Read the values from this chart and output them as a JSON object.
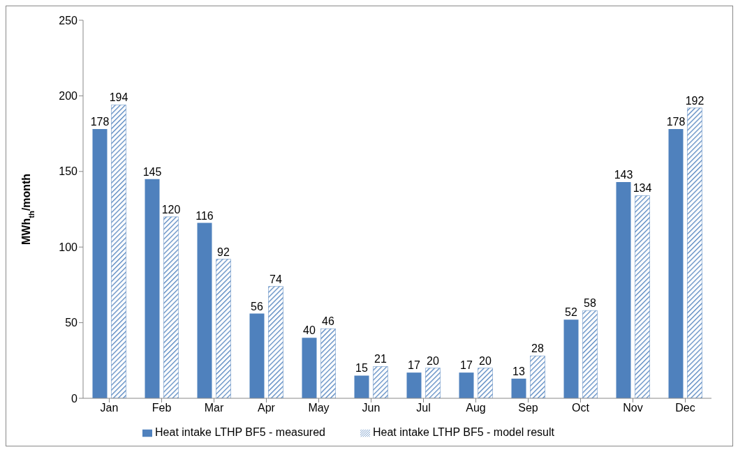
{
  "chart_data": {
    "type": "bar",
    "ylabel": "MWh$_{th}$/month",
    "categories": [
      "Jan",
      "Feb",
      "Mar",
      "Apr",
      "May",
      "Jun",
      "Jul",
      "Aug",
      "Sep",
      "Oct",
      "Nov",
      "Dec"
    ],
    "series": [
      {
        "name": "Heat intake LTHP BF5 - measured",
        "color": "#4f81bd",
        "values": [
          178,
          145,
          116,
          56,
          40,
          15,
          17,
          17,
          13,
          52,
          143,
          178
        ]
      },
      {
        "name": "Heat intake LTHP BF5 - model result",
        "color": "#4f81bd",
        "values": [
          194,
          120,
          92,
          74,
          46,
          21,
          20,
          20,
          28,
          58,
          134,
          192
        ]
      }
    ],
    "ylim": [
      0,
      250
    ],
    "yticks": [
      0,
      50,
      100,
      150,
      200,
      250
    ],
    "grid": false,
    "legend": "bottom",
    "data_labels": true
  }
}
